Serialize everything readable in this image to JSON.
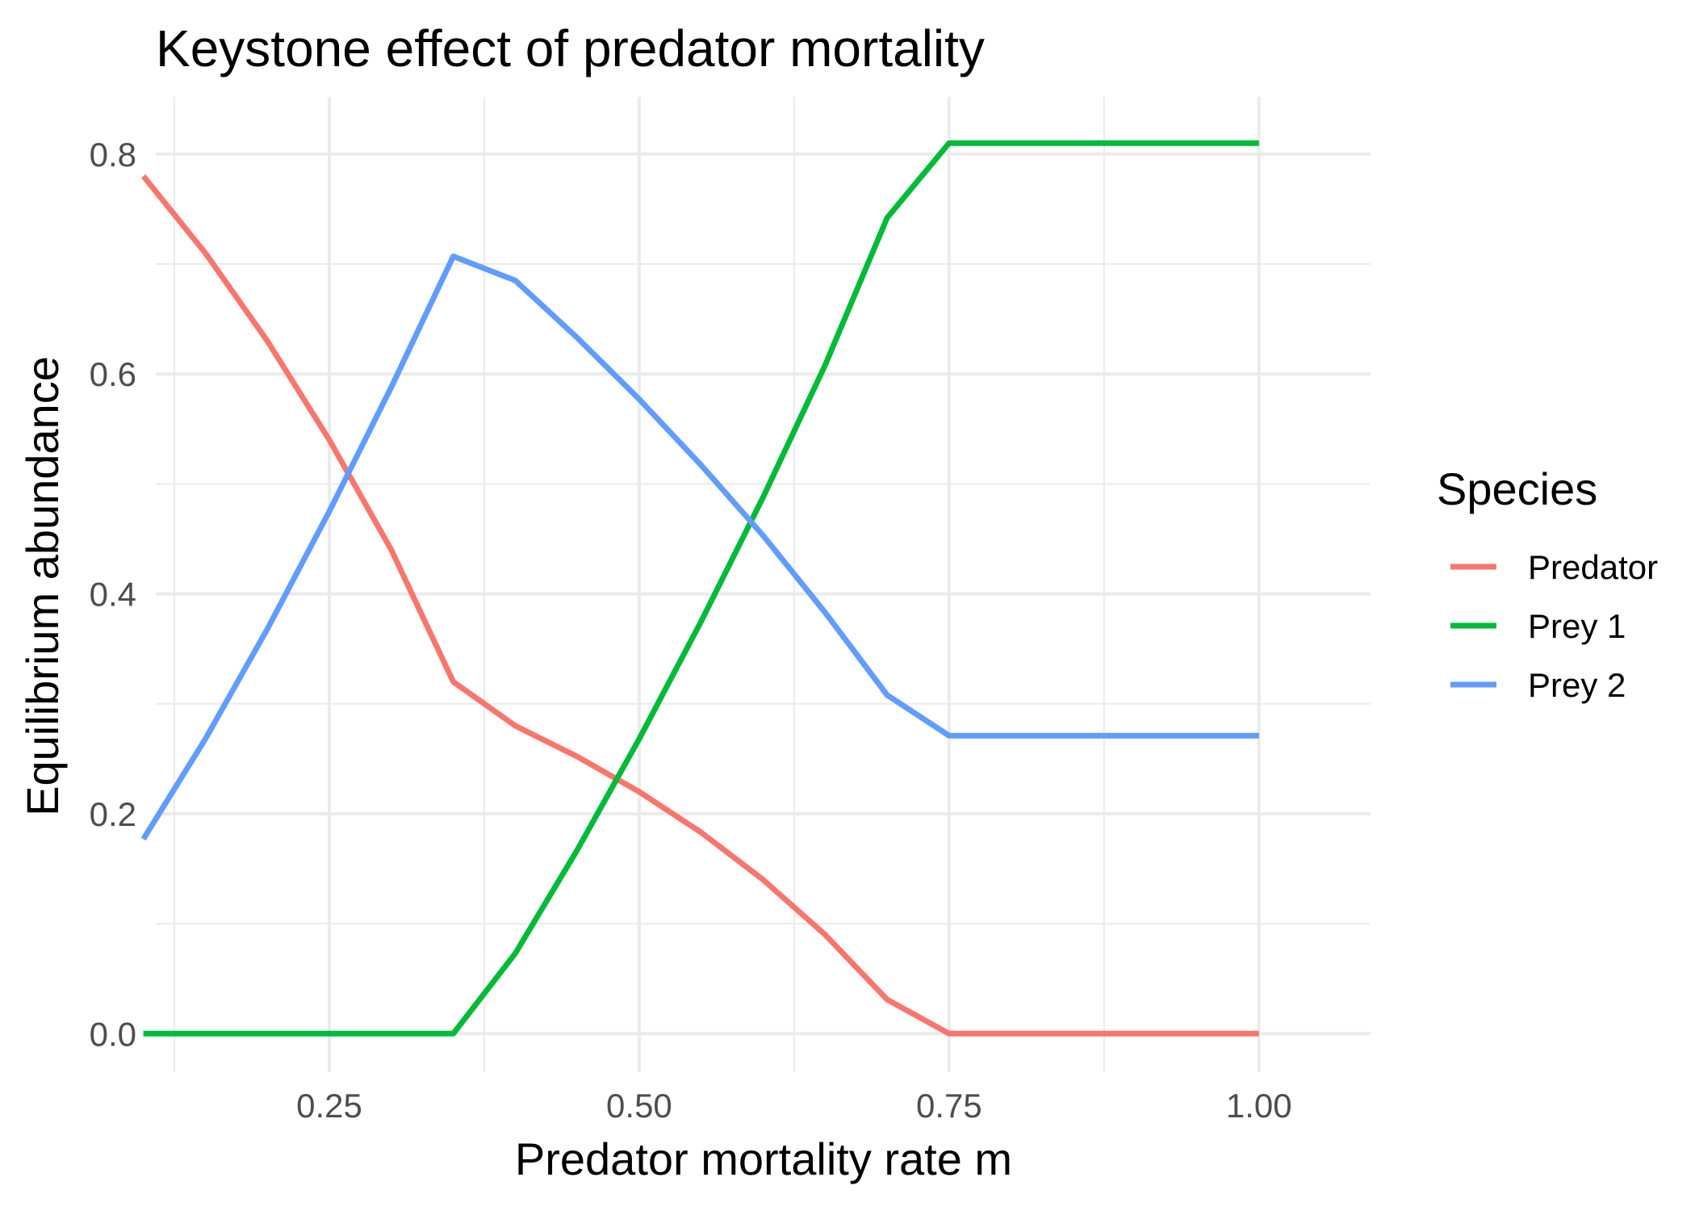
{
  "chart_data": {
    "type": "line",
    "title": "Keystone effect of predator mortality",
    "xlabel": "Predator mortality rate m",
    "ylabel": "Equilibrium abundance",
    "xlim": [
      0.11,
      1.09
    ],
    "ylim": [
      -0.035,
      0.852
    ],
    "x_major_ticks": [
      0.25,
      0.5,
      0.75,
      1.0
    ],
    "x_tick_labels": [
      "0.25",
      "0.50",
      "0.75",
      "1.00"
    ],
    "x_minor_ticks": [
      0.125,
      0.375,
      0.625,
      0.875
    ],
    "y_major_ticks": [
      0.0,
      0.2,
      0.4,
      0.6,
      0.8
    ],
    "y_tick_labels": [
      "0.0",
      "0.2",
      "0.4",
      "0.6",
      "0.8"
    ],
    "y_minor_ticks": [
      0.1,
      0.3,
      0.5,
      0.7
    ],
    "grid": true,
    "legend": {
      "title": "Species",
      "position": "right"
    },
    "x": [
      0.1,
      0.15,
      0.2,
      0.25,
      0.3,
      0.35,
      0.4,
      0.45,
      0.5,
      0.55,
      0.6,
      0.65,
      0.7,
      0.75,
      0.8,
      0.85,
      0.9,
      0.95,
      1.0
    ],
    "series": [
      {
        "name": "Predator",
        "color": "#F8766D",
        "values": [
          0.78,
          0.71,
          0.63,
          0.54,
          0.44,
          0.32,
          0.28,
          0.252,
          0.22,
          0.183,
          0.14,
          0.09,
          0.031,
          0.0,
          0.0,
          0.0,
          0.0,
          0.0,
          0.0
        ]
      },
      {
        "name": "Prey 1",
        "color": "#00BA38",
        "values": [
          0.0,
          0.0,
          0.0,
          0.0,
          0.0,
          0.0,
          0.073,
          0.167,
          0.268,
          0.375,
          0.488,
          0.608,
          0.742,
          0.81,
          0.81,
          0.81,
          0.81,
          0.81,
          0.81
        ]
      },
      {
        "name": "Prey 2",
        "color": "#619CFF",
        "values": [
          0.177,
          0.268,
          0.368,
          0.475,
          0.588,
          0.707,
          0.685,
          0.633,
          0.577,
          0.517,
          0.453,
          0.383,
          0.308,
          0.271,
          0.271,
          0.271,
          0.271,
          0.271,
          0.271
        ]
      }
    ]
  }
}
